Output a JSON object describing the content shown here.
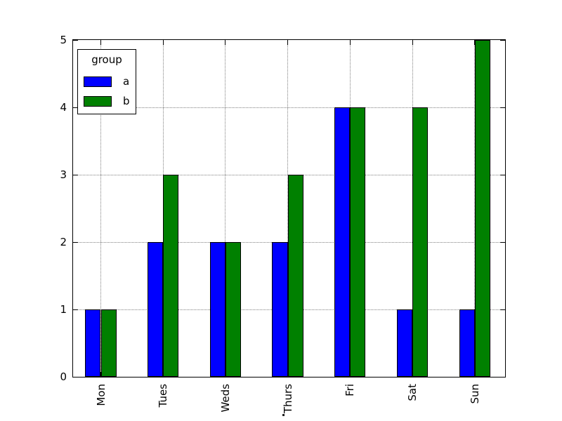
{
  "chart_data": {
    "type": "bar",
    "categories": [
      "Mon",
      "Tues",
      "Weds",
      "Thurs",
      "Fri",
      "Sat",
      "Sun"
    ],
    "series": [
      {
        "name": "a",
        "color": "#0000ff",
        "values": [
          1,
          2,
          2,
          2,
          4,
          1,
          1
        ]
      },
      {
        "name": "b",
        "color": "#008000",
        "values": [
          1,
          3,
          2,
          3,
          4,
          4,
          5
        ]
      }
    ],
    "ylim": [
      0,
      5
    ],
    "yticks": [
      0,
      1,
      2,
      3,
      4,
      5
    ],
    "grid": true,
    "grid_linestyle": "dotted",
    "bar_edge_color": "#000000",
    "background_color": "#ffffff",
    "tick_label_rotation_deg": 90,
    "legend": {
      "title": "group",
      "position": "upper left"
    }
  }
}
